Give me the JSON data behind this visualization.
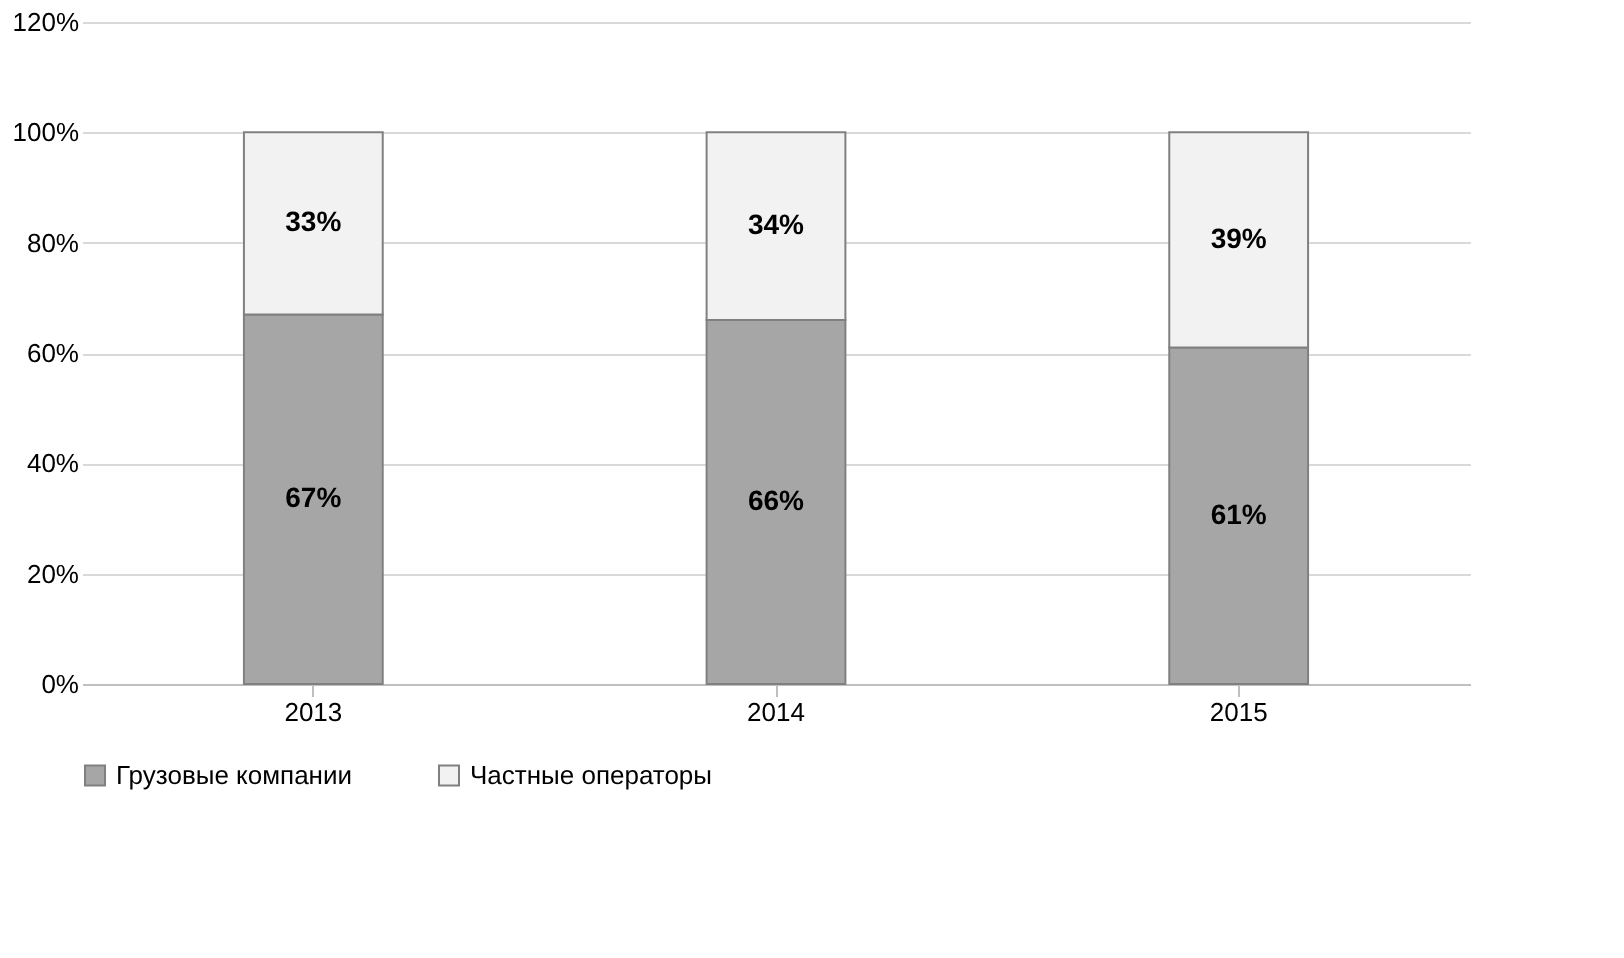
{
  "chart_data": {
    "type": "bar",
    "stacked": true,
    "categories": [
      "2013",
      "2014",
      "2015"
    ],
    "series": [
      {
        "name": "Грузовые компании",
        "color": "#a6a6a6",
        "values": [
          67,
          66,
          61
        ],
        "value_labels": [
          "67%",
          "66%",
          "61%"
        ]
      },
      {
        "name": "Частные операторы",
        "color": "#f2f2f2",
        "values": [
          33,
          34,
          39
        ],
        "value_labels": [
          "33%",
          "34%",
          "39%"
        ]
      }
    ],
    "ylim": [
      0,
      120
    ],
    "yticks": [
      {
        "value": 0,
        "label": "0%"
      },
      {
        "value": 20,
        "label": "20%"
      },
      {
        "value": 40,
        "label": "40%"
      },
      {
        "value": 60,
        "label": "60%"
      },
      {
        "value": 80,
        "label": "80%"
      },
      {
        "value": 100,
        "label": "100%"
      },
      {
        "value": 120,
        "label": "120%"
      }
    ],
    "grid": "y",
    "legend": "bottom"
  }
}
